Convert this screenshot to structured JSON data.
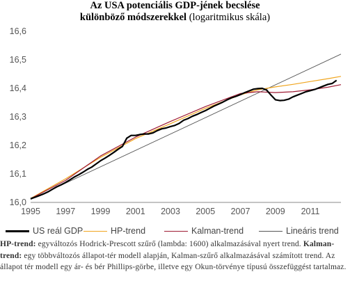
{
  "title": {
    "line1": "Az USA potenciális GDP-jének becslése",
    "line2_bold": "különböző módszerekkel",
    "line2_normal": " (logaritmikus skála)"
  },
  "notes": [
    {
      "bold": "HP-trend:",
      "text": " egyváltozós Hodrick-Prescott szűrő (lambda: 1600) alkalmazásával nyert trend."
    },
    {
      "bold": "Kalman-trend:",
      "text": " egy többváltozós állapot-tér modell alapján, Kalman-szűrő alkalmazásával számított trend. Az állapot tér  modell egy ár- és bér Phillips-görbe, illetve egy Okun-törvénye típusú összefüggést tartalmaz."
    }
  ],
  "chart_data": {
    "type": "line",
    "title": "Az USA potenciális GDP-jének becslése különböző módszerekkel (logaritmikus skála)",
    "xlim": [
      1995,
      2012.75
    ],
    "ylim": [
      16.0,
      16.6
    ],
    "xticks": [
      "1995",
      "1997",
      "1999",
      "2001",
      "2003",
      "2005",
      "2007",
      "2009",
      "2011"
    ],
    "yticks": [
      "16,0",
      "16,1",
      "16,2",
      "16,3",
      "16,4",
      "16,5",
      "16,6"
    ],
    "grid": false,
    "legend_position": "bottom",
    "series": [
      {
        "name": "US reál GDP",
        "color": "#000000",
        "style": "thick",
        "x": [
          1995.0,
          1995.25,
          1995.5,
          1995.75,
          1996.0,
          1996.25,
          1996.5,
          1996.75,
          1997.0,
          1997.25,
          1997.5,
          1997.75,
          1998.0,
          1998.25,
          1998.5,
          1998.75,
          1999.0,
          1999.25,
          1999.5,
          1999.75,
          2000.0,
          2000.25,
          2000.5,
          2000.75,
          2001.0,
          2001.25,
          2001.5,
          2001.75,
          2002.0,
          2002.25,
          2002.5,
          2002.75,
          2003.0,
          2003.25,
          2003.5,
          2003.75,
          2004.0,
          2004.25,
          2004.5,
          2004.75,
          2005.0,
          2005.25,
          2005.5,
          2005.75,
          2006.0,
          2006.25,
          2006.5,
          2006.75,
          2007.0,
          2007.25,
          2007.5,
          2007.75,
          2008.0,
          2008.25,
          2008.5,
          2008.75,
          2009.0,
          2009.25,
          2009.5,
          2009.75,
          2010.0,
          2010.25,
          2010.5,
          2010.75,
          2011.0,
          2011.25,
          2011.5,
          2011.75,
          2012.0,
          2012.25,
          2012.5
        ],
        "y": [
          16.013,
          16.018,
          16.024,
          16.03,
          16.037,
          16.046,
          16.055,
          16.062,
          16.07,
          16.079,
          16.089,
          16.097,
          16.106,
          16.116,
          16.124,
          16.135,
          16.146,
          16.155,
          16.165,
          16.175,
          16.186,
          16.196,
          16.225,
          16.235,
          16.235,
          16.238,
          16.24,
          16.24,
          16.244,
          16.252,
          16.258,
          16.261,
          16.266,
          16.27,
          16.277,
          16.288,
          16.294,
          16.302,
          16.308,
          16.315,
          16.322,
          16.33,
          16.338,
          16.345,
          16.352,
          16.36,
          16.367,
          16.372,
          16.378,
          16.385,
          16.391,
          16.397,
          16.399,
          16.4,
          16.394,
          16.376,
          16.36,
          16.357,
          16.358,
          16.362,
          16.37,
          16.376,
          16.382,
          16.388,
          16.392,
          16.396,
          16.402,
          16.408,
          16.414,
          16.417,
          16.428
        ]
      },
      {
        "name": "HP-trend",
        "color": "#f0a51e",
        "x": [
          1995.0,
          1997.0,
          1999.0,
          2001.0,
          2003.0,
          2005.0,
          2007.0,
          2008.0,
          2009.0,
          2010.0,
          2011.0,
          2012.0,
          2012.75
        ],
        "y": [
          16.014,
          16.083,
          16.158,
          16.224,
          16.276,
          16.33,
          16.377,
          16.395,
          16.405,
          16.414,
          16.424,
          16.434,
          16.442
        ]
      },
      {
        "name": "Kalman-trend",
        "color": "#9e1a33",
        "x": [
          1995.0,
          1997.0,
          1999.0,
          2001.0,
          2003.0,
          2005.0,
          2007.0,
          2008.0,
          2009.0,
          2010.0,
          2011.0,
          2012.0,
          2012.75
        ],
        "y": [
          16.013,
          16.077,
          16.163,
          16.229,
          16.284,
          16.336,
          16.382,
          16.388,
          16.385,
          16.388,
          16.395,
          16.404,
          16.413
        ]
      },
      {
        "name": "Lineáris trend",
        "color": "#555555",
        "x": [
          1995.0,
          2012.75
        ],
        "y": [
          16.01,
          16.52
        ]
      }
    ]
  }
}
